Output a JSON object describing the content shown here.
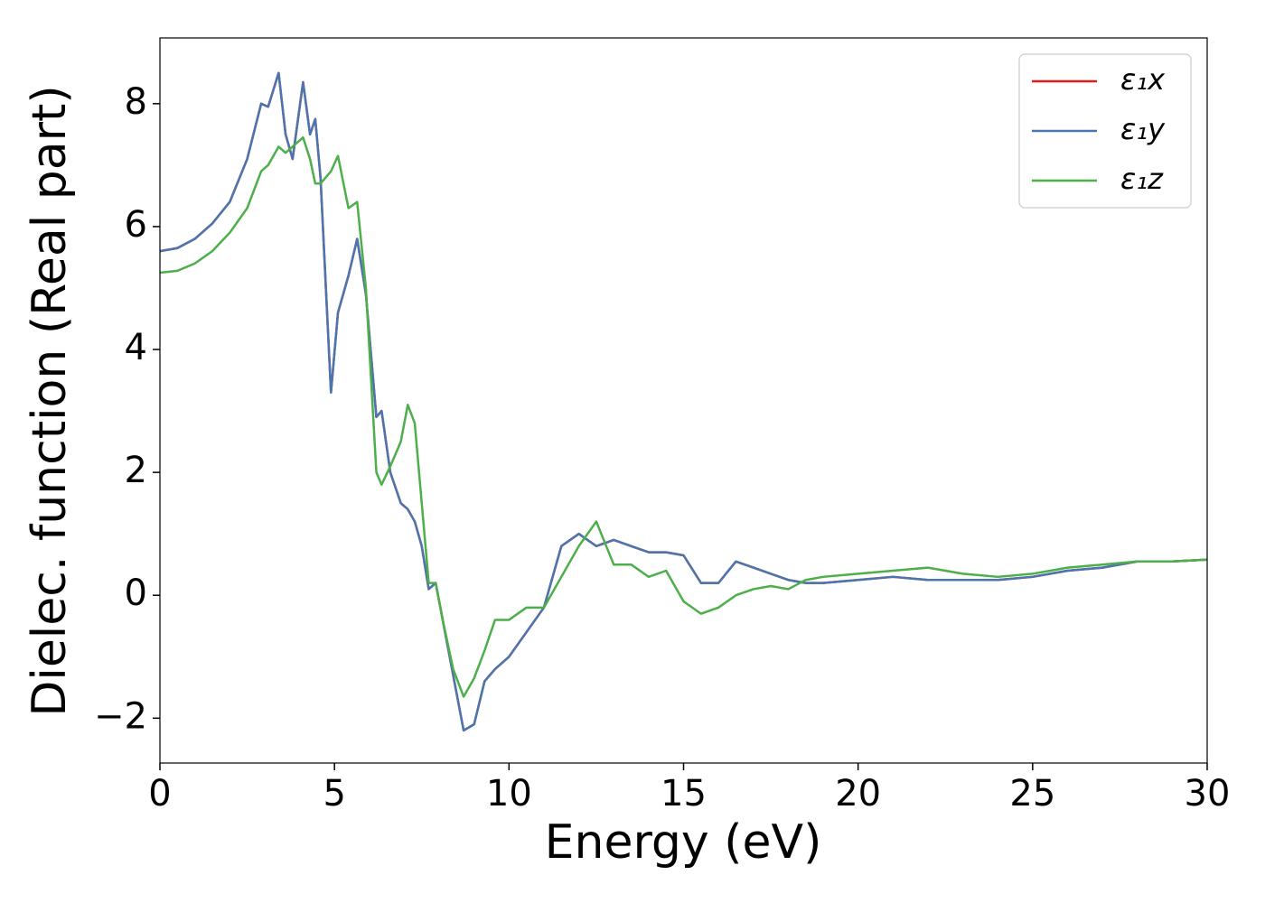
{
  "chart_data": {
    "type": "line",
    "xlabel": "Energy (eV)",
    "ylabel": "Dielec. function (Real part)",
    "x": [
      0,
      0.5,
      1,
      1.5,
      2,
      2.5,
      2.9,
      3.1,
      3.4,
      3.6,
      3.8,
      4.1,
      4.3,
      4.45,
      4.6,
      4.9,
      5.1,
      5.4,
      5.65,
      5.9,
      6.2,
      6.35,
      6.6,
      6.9,
      7.1,
      7.3,
      7.5,
      7.7,
      7.9,
      8.1,
      8.4,
      8.7,
      9,
      9.3,
      9.6,
      10,
      10.5,
      11,
      11.5,
      12,
      12.5,
      13,
      13.5,
      14,
      14.5,
      15,
      15.5,
      16,
      16.5,
      17,
      17.5,
      18,
      18.5,
      19,
      20,
      21,
      22,
      23,
      24,
      25,
      26,
      27,
      28,
      29,
      30
    ],
    "series": [
      {
        "name": "ε₁x",
        "color": "#e41a1c",
        "values": [
          5.6,
          5.65,
          5.8,
          6.05,
          6.4,
          7.1,
          8.0,
          7.95,
          8.5,
          7.5,
          7.1,
          8.35,
          7.5,
          7.75,
          6.8,
          3.3,
          4.6,
          5.2,
          5.8,
          4.9,
          2.9,
          3.0,
          2.0,
          1.5,
          1.4,
          1.2,
          0.8,
          0.1,
          0.2,
          -0.4,
          -1.3,
          -2.2,
          -2.1,
          -1.4,
          -1.2,
          -1.0,
          -0.6,
          -0.2,
          0.8,
          1.0,
          0.8,
          0.9,
          0.8,
          0.7,
          0.7,
          0.65,
          0.2,
          0.2,
          0.55,
          0.45,
          0.35,
          0.25,
          0.2,
          0.2,
          0.25,
          0.3,
          0.25,
          0.25,
          0.25,
          0.3,
          0.4,
          0.45,
          0.55,
          0.55,
          0.58
        ]
      },
      {
        "name": "ε₁y",
        "color": "#4a76b0",
        "values": [
          5.6,
          5.65,
          5.8,
          6.05,
          6.4,
          7.1,
          8.0,
          7.95,
          8.5,
          7.5,
          7.1,
          8.35,
          7.5,
          7.75,
          6.8,
          3.3,
          4.6,
          5.2,
          5.8,
          4.9,
          2.9,
          3.0,
          2.0,
          1.5,
          1.4,
          1.2,
          0.8,
          0.1,
          0.2,
          -0.4,
          -1.3,
          -2.2,
          -2.1,
          -1.4,
          -1.2,
          -1.0,
          -0.6,
          -0.2,
          0.8,
          1.0,
          0.8,
          0.9,
          0.8,
          0.7,
          0.7,
          0.65,
          0.2,
          0.2,
          0.55,
          0.45,
          0.35,
          0.25,
          0.2,
          0.2,
          0.25,
          0.3,
          0.25,
          0.25,
          0.25,
          0.3,
          0.4,
          0.45,
          0.55,
          0.55,
          0.58
        ]
      },
      {
        "name": "ε₁z",
        "color": "#4daf4a",
        "values": [
          5.25,
          5.28,
          5.4,
          5.6,
          5.9,
          6.3,
          6.9,
          7.0,
          7.3,
          7.2,
          7.3,
          7.45,
          7.1,
          6.7,
          6.7,
          6.9,
          7.15,
          6.3,
          6.4,
          5.0,
          2.0,
          1.8,
          2.1,
          2.5,
          3.1,
          2.8,
          1.5,
          0.2,
          0.2,
          -0.4,
          -1.2,
          -1.65,
          -1.35,
          -0.9,
          -0.4,
          -0.4,
          -0.2,
          -0.2,
          0.3,
          0.8,
          1.2,
          0.5,
          0.5,
          0.3,
          0.4,
          -0.1,
          -0.3,
          -0.2,
          0,
          0.1,
          0.15,
          0.1,
          0.25,
          0.3,
          0.35,
          0.4,
          0.45,
          0.35,
          0.3,
          0.35,
          0.45,
          0.5,
          0.55,
          0.55,
          0.58
        ]
      }
    ],
    "xlim": [
      0,
      30
    ],
    "xticks": [
      0,
      5,
      10,
      15,
      20,
      25,
      30
    ],
    "ylim": [
      -2.73,
      9.07
    ],
    "yticks": [
      {
        "value": -2,
        "label": "−2"
      },
      0,
      2,
      4,
      6,
      8
    ],
    "grid": false,
    "legend": "upper right"
  }
}
